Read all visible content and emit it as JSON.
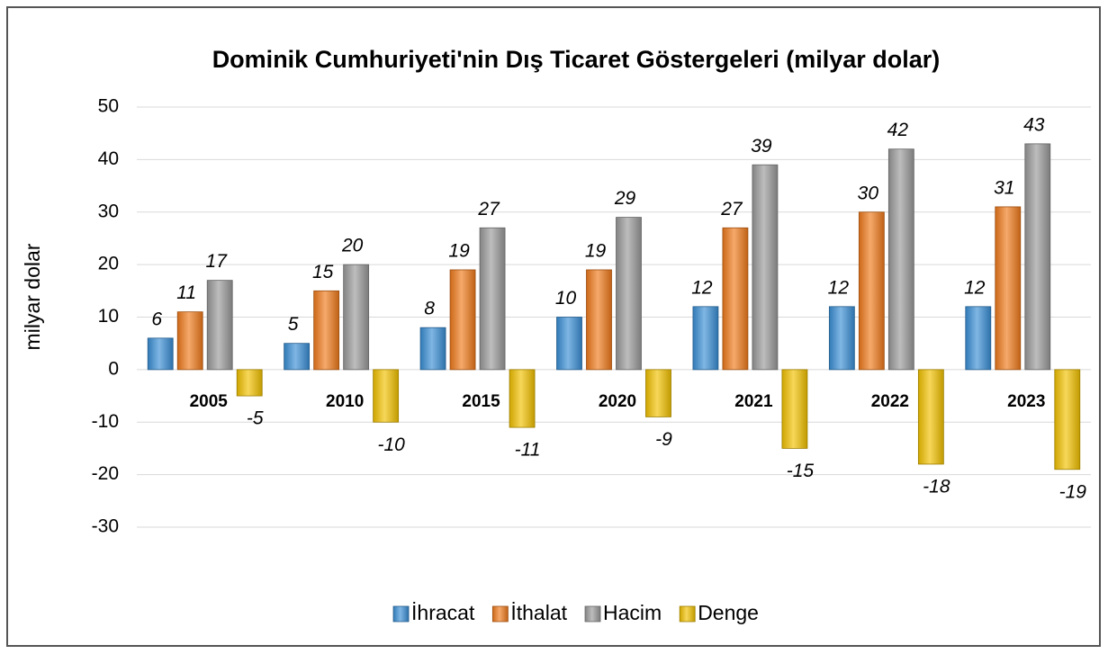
{
  "chart_data": {
    "type": "bar",
    "title": "Dominik Cumhuriyeti'nin Dış Ticaret Göstergeleri (milyar dolar)",
    "y_label": "milyar dolar",
    "categories": [
      "2005",
      "2010",
      "2015",
      "2020",
      "2021",
      "2022",
      "2023"
    ],
    "series": [
      {
        "name": "İhracat",
        "color": "#3a8fd6",
        "values": [
          6,
          5,
          8,
          10,
          12,
          12,
          12
        ]
      },
      {
        "name": "İthalat",
        "color": "#f07a1c",
        "values": [
          11,
          15,
          19,
          19,
          27,
          30,
          31
        ]
      },
      {
        "name": "Hacim",
        "color": "#9a9a9a",
        "values": [
          17,
          20,
          27,
          29,
          39,
          42,
          43
        ]
      },
      {
        "name": "Denge",
        "color": "#f2c200",
        "values": [
          -5,
          -10,
          -11,
          -9,
          -15,
          -18,
          -19
        ]
      }
    ],
    "ylim": [
      -30,
      50
    ],
    "yticks": [
      -30,
      -20,
      -10,
      0,
      10,
      20,
      30,
      40,
      50
    ],
    "grid": true,
    "legend": "bottom"
  }
}
